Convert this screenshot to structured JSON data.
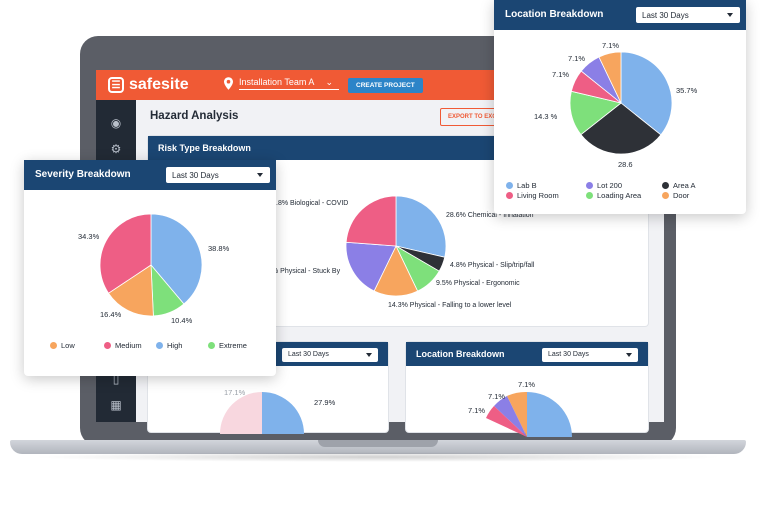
{
  "app": {
    "brand": "safesite",
    "team": "Installation Team A",
    "create_project": "CREATE PROJECT",
    "page_title": "Hazard Analysis",
    "export": "EXPORT TO EXCEL"
  },
  "risk_panel": {
    "title": "Risk Type Breakdown",
    "chart_data": {
      "type": "pie",
      "slices": [
        {
          "label": "Chemical - Inhalation",
          "value": 28.6,
          "color": "#7fb2eb"
        },
        {
          "label": "Physical - Slip/trip/fall",
          "value": 4.8,
          "color": "#2e3137"
        },
        {
          "label": "Physical - Ergonomic",
          "value": 9.5,
          "color": "#7ee07b"
        },
        {
          "label": "Physical - Falling to a lower level",
          "value": 14.3,
          "color": "#f7a55e"
        },
        {
          "label": "Physical - Stuck By",
          "value": 19.0,
          "color": "#8b7fe6"
        },
        {
          "label": "Biological - COVID",
          "value": 23.8,
          "color": "#ee5e85"
        }
      ],
      "label_texts": {
        "chem": "28.6%  Chemical - Inhalation",
        "slip": "4.8%  Physical - Slip/trip/fall",
        "ergo": "9.5%  Physical - Ergonomic",
        "fall": "14.3%  Physical - Falling to a lower level",
        "stuck": "% Physical - Stuck By",
        "covid": ".8%  Biological - COVID"
      }
    }
  },
  "bottom_left_panel": {
    "select": "Last 30 Days",
    "pct_top": "17.1%",
    "pct_right": "27.9%"
  },
  "bottom_right_panel": {
    "title": "Location Breakdown",
    "select": "Last 30 Days",
    "pct_a": "7.1%",
    "pct_b": "7.1%",
    "pct_c": "7.1%"
  },
  "severity_card": {
    "title": "Severity Breakdown",
    "select": "Last 30 Days",
    "chart_data": {
      "type": "pie",
      "slices": [
        {
          "label": "High",
          "value": 38.8,
          "color": "#7fb2eb"
        },
        {
          "label": "Extreme",
          "value": 10.4,
          "color": "#7ee07b"
        },
        {
          "label": "Low",
          "value": 16.4,
          "color": "#f7a55e"
        },
        {
          "label": "Medium",
          "value": 34.3,
          "color": "#ee5e85"
        }
      ],
      "pct_labels": {
        "high": "38.8%",
        "extreme": "10.4%",
        "low": "16.4%",
        "medium": "34.3%"
      },
      "legend": [
        {
          "label": "Low",
          "color": "#f7a55e"
        },
        {
          "label": "Medium",
          "color": "#ee5e85"
        },
        {
          "label": "High",
          "color": "#7fb2eb"
        },
        {
          "label": "Extreme",
          "color": "#7ee07b"
        }
      ]
    }
  },
  "location_card": {
    "title": "Location Breakdown",
    "select": "Last 30 Days",
    "chart_data": {
      "type": "pie",
      "slices": [
        {
          "label": "Lab B",
          "value": 35.7,
          "color": "#7fb2eb"
        },
        {
          "label": "Area A",
          "value": 28.6,
          "color": "#2e3137"
        },
        {
          "label": "Loading Area",
          "value": 14.3,
          "color": "#7ee07b"
        },
        {
          "label": "Living Room",
          "value": 7.1,
          "color": "#ee5e85"
        },
        {
          "label": "Lot 200",
          "value": 7.1,
          "color": "#8b7fe6"
        },
        {
          "label": "Door",
          "value": 7.1,
          "color": "#f7a55e"
        }
      ],
      "pct_labels": {
        "lab": "35.7%",
        "area": "28.6",
        "loading": "14.3 %",
        "living": "7.1%",
        "lot": "7.1%",
        "door": "7.1%"
      },
      "legend": [
        {
          "label": "Lab B",
          "color": "#7fb2eb"
        },
        {
          "label": "Lot 200",
          "color": "#8b7fe6"
        },
        {
          "label": "Area A",
          "color": "#2e3137"
        },
        {
          "label": "Living Room",
          "color": "#ee5e85"
        },
        {
          "label": "Loading Area",
          "color": "#7ee07b"
        },
        {
          "label": "Door",
          "color": "#f7a55e"
        }
      ]
    }
  }
}
